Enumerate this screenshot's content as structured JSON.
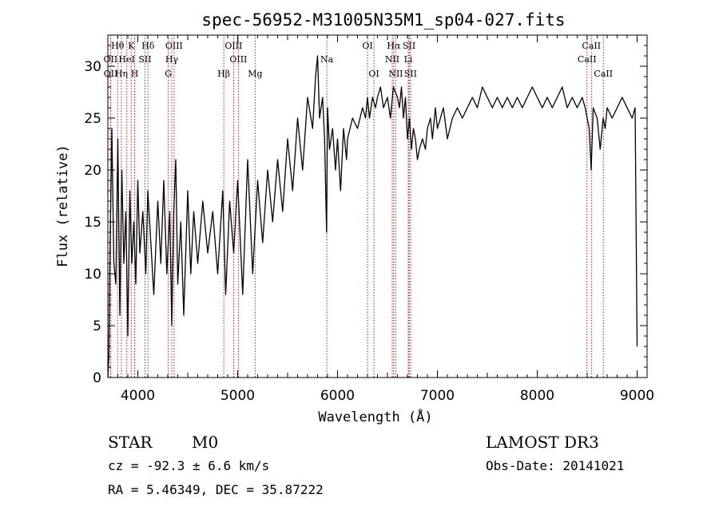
{
  "title": "spec-56952-M31005N35M1_sp04-027.fits",
  "info": {
    "class_label": "STAR",
    "subclass_label": "M0",
    "velocity_text": "cz = -92.3 ± 6.6 km/s",
    "coords_text": "RA =   5.46349, DEC =  35.87222",
    "survey_text": "LAMOST DR3",
    "obsdate_text": "Obs-Date: 20141021"
  },
  "colors": {
    "spectrum": "#000000",
    "line_markers": "#b22222",
    "axes": "#000000"
  },
  "chart_data": {
    "type": "line",
    "title": "spec-56952-M31005N35M1_sp04-027.fits",
    "xlabel": "Wavelength (Å)",
    "ylabel": "Flux (relative)",
    "xlim": [
      3700,
      9100
    ],
    "ylim": [
      0,
      33
    ],
    "xticks": [
      4000,
      5000,
      6000,
      7000,
      8000,
      9000
    ],
    "yticks": [
      0,
      5,
      10,
      15,
      20,
      25,
      30
    ],
    "grid": false,
    "legend": "none",
    "series": [
      {
        "x": [
          3700,
          3710,
          3720,
          3740,
          3760,
          3780,
          3800,
          3820,
          3840,
          3860,
          3880,
          3900,
          3920,
          3940,
          3960,
          3980,
          4000,
          4020,
          4050,
          4080,
          4100,
          4130,
          4160,
          4200,
          4230,
          4260,
          4290,
          4320,
          4340,
          4360,
          4380,
          4400,
          4430,
          4460,
          4500,
          4530,
          4560,
          4600,
          4650,
          4700,
          4750,
          4800,
          4850,
          4880,
          4920,
          4960,
          5000,
          5050,
          5100,
          5150,
          5200,
          5250,
          5300,
          5350,
          5400,
          5450,
          5500,
          5550,
          5600,
          5650,
          5700,
          5750,
          5780,
          5800,
          5820,
          5850,
          5870,
          5890,
          5900,
          5920,
          5950,
          5980,
          6000,
          6030,
          6060,
          6090,
          6100,
          6150,
          6200,
          6250,
          6280,
          6300,
          6320,
          6350,
          6380,
          6400,
          6430,
          6460,
          6500,
          6530,
          6560,
          6600,
          6620,
          6640,
          6660,
          6680,
          6700,
          6710,
          6720,
          6740,
          6760,
          6780,
          6800,
          6820,
          6850,
          6880,
          6900,
          6930,
          6950,
          6980,
          7000,
          7030,
          7060,
          7100,
          7150,
          7200,
          7250,
          7300,
          7350,
          7400,
          7450,
          7500,
          7550,
          7600,
          7650,
          7700,
          7750,
          7800,
          7850,
          7900,
          7950,
          8000,
          8050,
          8100,
          8150,
          8200,
          8250,
          8300,
          8350,
          8400,
          8450,
          8480,
          8500,
          8520,
          8540,
          8560,
          8600,
          8630,
          8660,
          8680,
          8700,
          8750,
          8800,
          8850,
          8900,
          8950,
          8980,
          9000
        ],
        "y": [
          0,
          2,
          11,
          24,
          11,
          9,
          23,
          6,
          20,
          11,
          16,
          4,
          18,
          11,
          15,
          9,
          19,
          12,
          16,
          10,
          18,
          13,
          8,
          17,
          11,
          19,
          10,
          16,
          5,
          16,
          21,
          9,
          15,
          6,
          18,
          10,
          16,
          11,
          17,
          12,
          16,
          10,
          18,
          8,
          17,
          12,
          19,
          8,
          21,
          10,
          19,
          13,
          20,
          15,
          21,
          16,
          23,
          18,
          25,
          20,
          27,
          24,
          29,
          31,
          25,
          27,
          23,
          14,
          26,
          22,
          24,
          20,
          23,
          18,
          24,
          21,
          23,
          25,
          24,
          26,
          25,
          27,
          25,
          27,
          26,
          27,
          28,
          26,
          27,
          25,
          28,
          27,
          26,
          28,
          25,
          27,
          23,
          24,
          25,
          22,
          24,
          23,
          21,
          22,
          23,
          22,
          24,
          25,
          23,
          26,
          24,
          25,
          26,
          23,
          25,
          26,
          25,
          26,
          27,
          26,
          28,
          27,
          26,
          27,
          26,
          27,
          26,
          27,
          26,
          27,
          28,
          27,
          26,
          27,
          26,
          27,
          28,
          26,
          27,
          26,
          27,
          26,
          25,
          24,
          20,
          26,
          25,
          22,
          25,
          24,
          26,
          25,
          26,
          27,
          26,
          25,
          26,
          3
        ]
      }
    ],
    "line_markers": [
      {
        "label": "Hθ",
        "wavelength": 3798,
        "row": 1
      },
      {
        "label": "K",
        "wavelength": 3934,
        "row": 1
      },
      {
        "label": "Hδ",
        "wavelength": 4102,
        "row": 1
      },
      {
        "label": "OIII",
        "wavelength": 4363,
        "row": 1
      },
      {
        "label": "OIII",
        "wavelength": 4959,
        "row": 1
      },
      {
        "label": "OI",
        "wavelength": 6300,
        "row": 1
      },
      {
        "label": "Hα",
        "wavelength": 6563,
        "row": 1
      },
      {
        "label": "SII",
        "wavelength": 6717,
        "row": 1
      },
      {
        "label": "CaII",
        "wavelength": 8542,
        "row": 1
      },
      {
        "label": "OII",
        "wavelength": 3727,
        "row": 2
      },
      {
        "label": "HeI",
        "wavelength": 3889,
        "row": 2
      },
      {
        "label": "SII",
        "wavelength": 4072,
        "row": 2
      },
      {
        "label": "Hγ",
        "wavelength": 4340,
        "row": 2
      },
      {
        "label": "OIII",
        "wavelength": 5007,
        "row": 2
      },
      {
        "label": "Na",
        "wavelength": 5893,
        "row": 2
      },
      {
        "label": "NII",
        "wavelength": 6548,
        "row": 2
      },
      {
        "label": "Li",
        "wavelength": 6708,
        "row": 2
      },
      {
        "label": "CaII",
        "wavelength": 8498,
        "row": 2
      },
      {
        "label": "OII",
        "wavelength": 3729,
        "row": 3
      },
      {
        "label": "Hη",
        "wavelength": 3835,
        "row": 3
      },
      {
        "label": "H",
        "wavelength": 3968,
        "row": 3
      },
      {
        "label": "G",
        "wavelength": 4305,
        "row": 3
      },
      {
        "label": "Hβ",
        "wavelength": 4861,
        "row": 3
      },
      {
        "label": "Mg",
        "wavelength": 5175,
        "row": 3
      },
      {
        "label": "OI",
        "wavelength": 6364,
        "row": 3
      },
      {
        "label": "NII",
        "wavelength": 6583,
        "row": 3
      },
      {
        "label": "SII",
        "wavelength": 6731,
        "row": 3
      },
      {
        "label": "CaII",
        "wavelength": 8662,
        "row": 3
      }
    ]
  }
}
